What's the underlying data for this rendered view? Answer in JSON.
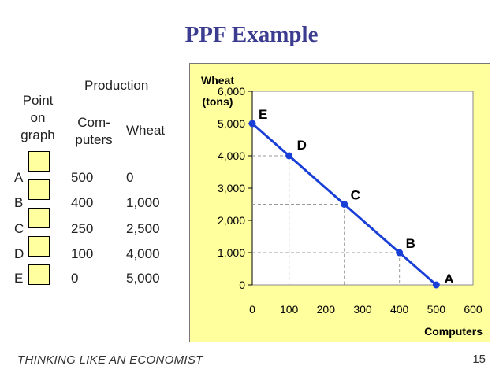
{
  "slide": {
    "title": "PPF Example",
    "footer": "THINKING LIKE AN ECONOMIST",
    "page_number": "15"
  },
  "table": {
    "header_point": [
      "Point",
      "on",
      "graph"
    ],
    "header_production": "Production",
    "header_computers": [
      "Com-",
      "puters"
    ],
    "header_wheat": "Wheat",
    "rows": [
      {
        "point": "A",
        "computers": "500",
        "wheat": "0"
      },
      {
        "point": "B",
        "computers": "400",
        "wheat": "1,000"
      },
      {
        "point": "C",
        "computers": "250",
        "wheat": "2,500"
      },
      {
        "point": "D",
        "computers": "100",
        "wheat": "4,000"
      },
      {
        "point": "E",
        "computers": "0",
        "wheat": "5,000"
      }
    ]
  },
  "colors": {
    "title": "#3b3b8f",
    "panel_bg": "#ffff9e",
    "line": "#1a3fd6",
    "box_fill": "#ffffa0"
  },
  "chart_data": {
    "type": "line",
    "title": "",
    "xlabel": "Computers",
    "ylabel": [
      "Wheat",
      "(tons)"
    ],
    "xlim": [
      0,
      600
    ],
    "ylim": [
      0,
      6000
    ],
    "xticks": [
      0,
      100,
      200,
      300,
      400,
      500,
      600
    ],
    "yticks": [
      0,
      1000,
      2000,
      3000,
      4000,
      5000,
      6000
    ],
    "xtick_labels": [
      "0",
      "100",
      "200",
      "300",
      "400",
      "500",
      "600"
    ],
    "ytick_labels": [
      "0",
      "1,000",
      "2,000",
      "3,000",
      "4,000",
      "5,000",
      "6,000"
    ],
    "grid": false,
    "series": [
      {
        "points": [
          {
            "label": "E",
            "x": 0,
            "y": 5000
          },
          {
            "label": "D",
            "x": 100,
            "y": 4000
          },
          {
            "label": "C",
            "x": 250,
            "y": 2500
          },
          {
            "label": "B",
            "x": 400,
            "y": 1000
          },
          {
            "label": "A",
            "x": 500,
            "y": 0
          }
        ]
      }
    ],
    "guide_lines_for": [
      "D",
      "C",
      "B"
    ]
  }
}
